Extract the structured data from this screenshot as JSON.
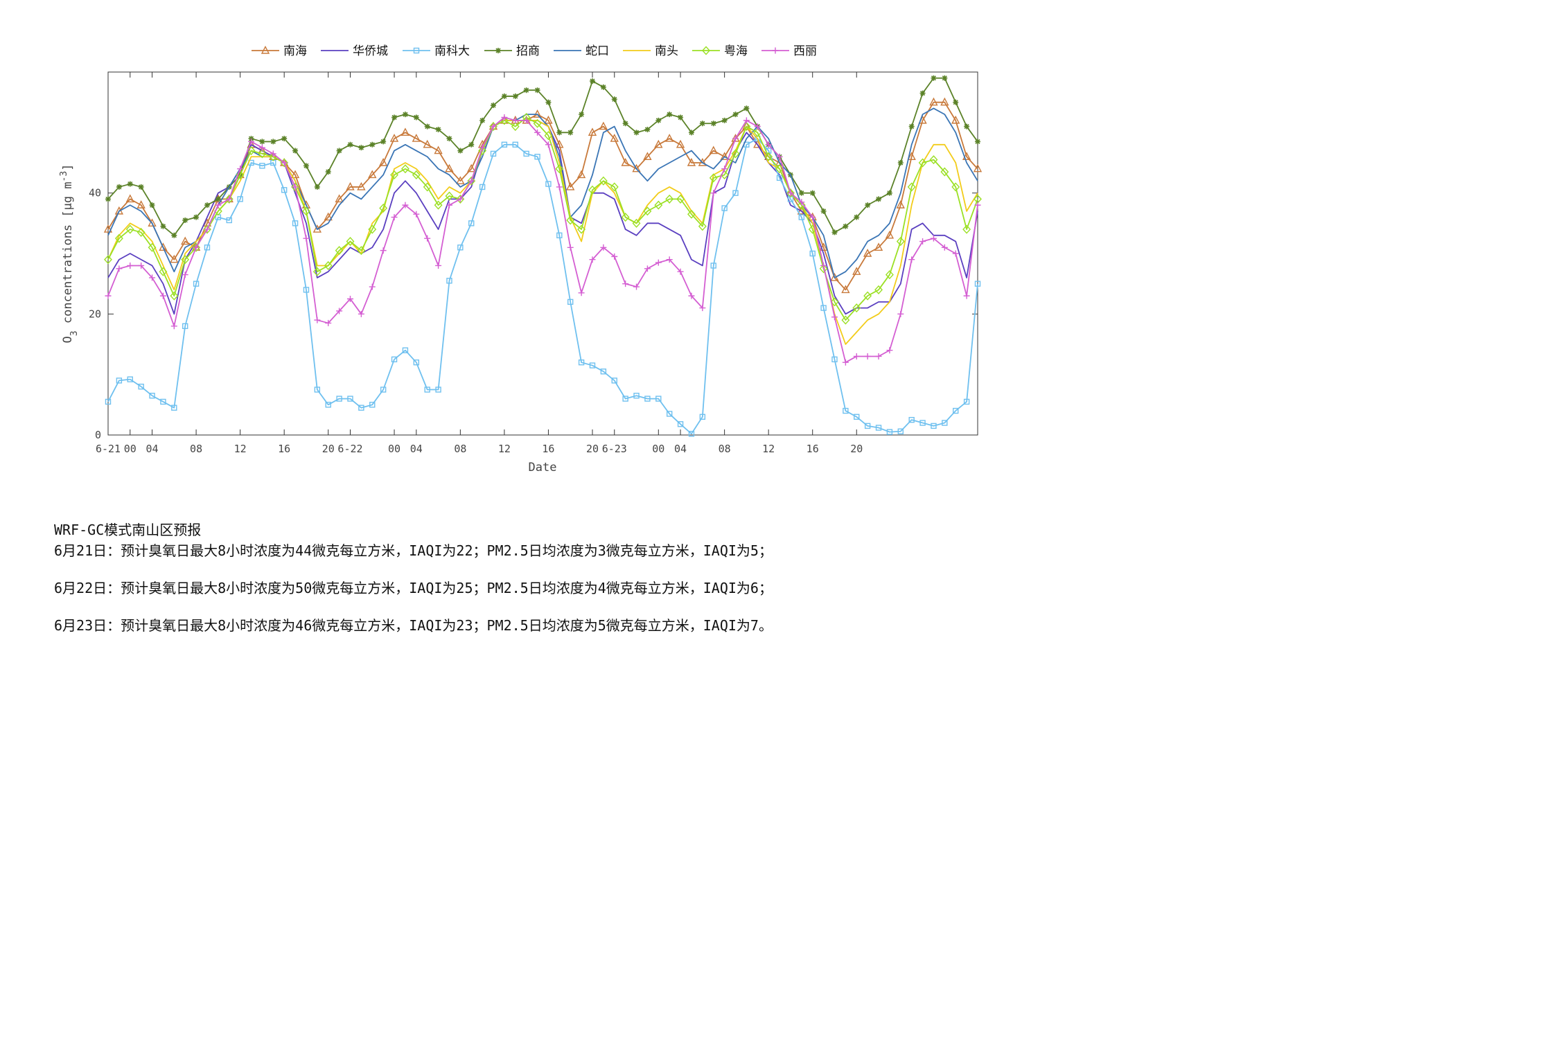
{
  "chart_data": {
    "type": "line",
    "xlabel": "Date",
    "ylabel": "O3 concentrations [μg m-3]",
    "ylim": [
      0,
      60
    ],
    "yticks": [
      0,
      20,
      40
    ],
    "x": [
      0,
      1,
      2,
      3,
      4,
      5,
      6,
      7,
      8,
      9,
      10,
      11,
      12,
      13,
      14,
      15,
      16,
      17,
      18,
      19,
      20,
      21,
      22,
      23,
      24,
      25,
      26,
      27,
      28,
      29,
      30,
      31,
      32,
      33,
      34,
      35,
      36,
      37,
      38,
      39,
      40,
      41,
      42,
      43,
      44,
      45,
      46,
      47,
      48,
      49,
      50,
      51,
      52,
      53,
      54,
      55,
      56,
      57,
      58,
      59,
      60,
      61,
      62,
      63,
      64,
      65,
      66,
      67,
      68,
      69,
      70,
      71,
      72,
      73,
      74,
      75,
      76,
      77,
      78,
      79
    ],
    "xticks": [
      {
        "x": 0,
        "label": "6-21"
      },
      {
        "x": 2,
        "label": "00"
      },
      {
        "x": 4,
        "label": "04"
      },
      {
        "x": 8,
        "label": "08"
      },
      {
        "x": 12,
        "label": "12"
      },
      {
        "x": 16,
        "label": "16"
      },
      {
        "x": 20,
        "label": "20"
      },
      {
        "x": 22,
        "label": "6-22"
      },
      {
        "x": 26,
        "label": "00"
      },
      {
        "x": 28,
        "label": "04"
      },
      {
        "x": 32,
        "label": "08"
      },
      {
        "x": 36,
        "label": "12"
      },
      {
        "x": 40,
        "label": "16"
      },
      {
        "x": 44,
        "label": "20"
      },
      {
        "x": 46,
        "label": "6-23"
      },
      {
        "x": 50,
        "label": "00"
      },
      {
        "x": 52,
        "label": "04"
      },
      {
        "x": 56,
        "label": "08"
      },
      {
        "x": 60,
        "label": "12"
      },
      {
        "x": 64,
        "label": "16"
      },
      {
        "x": 68,
        "label": "20"
      }
    ],
    "legend_position": "top",
    "series": [
      {
        "name": "南海",
        "color": "#c8793a",
        "marker": "triangle",
        "values": [
          34,
          37,
          39,
          38,
          35,
          31,
          29,
          32,
          31,
          35,
          39,
          39,
          43,
          48,
          47,
          46,
          45,
          43,
          38,
          34,
          36,
          39,
          41,
          41,
          43,
          45,
          49,
          50,
          49,
          48,
          47,
          44,
          42,
          44,
          48,
          51,
          52,
          52,
          52,
          53,
          52,
          48,
          41,
          43,
          50,
          51,
          49,
          45,
          44,
          46,
          48,
          49,
          48,
          45,
          45,
          47,
          46,
          49,
          51,
          48,
          46,
          45,
          40,
          37,
          36,
          31,
          26,
          24,
          27,
          30,
          31,
          33,
          38,
          46,
          52,
          55,
          55,
          52,
          46,
          44
        ]
      },
      {
        "name": "华侨城",
        "color": "#5a3fc0",
        "marker": "none",
        "values": [
          26,
          29,
          30,
          29,
          28,
          25,
          20,
          29,
          32,
          36,
          40,
          41,
          44,
          48,
          47,
          46,
          45,
          40,
          35,
          26,
          27,
          29,
          31,
          30,
          31,
          34,
          40,
          42,
          40,
          37,
          34,
          39,
          39,
          41,
          47,
          51,
          52,
          52,
          52,
          52,
          51,
          47,
          36,
          35,
          40,
          40,
          39,
          34,
          33,
          35,
          35,
          34,
          33,
          29,
          28,
          40,
          41,
          47,
          50,
          48,
          45,
          43,
          38,
          37,
          35,
          30,
          23,
          20,
          21,
          21,
          22,
          22,
          25,
          34,
          35,
          33,
          33,
          32,
          26,
          37
        ]
      },
      {
        "name": "南科大",
        "color": "#6fc0ef",
        "marker": "square",
        "values": [
          5.5,
          9,
          9.2,
          8,
          6.5,
          5.5,
          4.5,
          18,
          25,
          31,
          36,
          35.5,
          39,
          45,
          44.5,
          45,
          40.5,
          35,
          24,
          7.5,
          5,
          6,
          6,
          4.5,
          5,
          7.5,
          12.5,
          14,
          12,
          7.5,
          7.5,
          25.5,
          31,
          35,
          41,
          46.5,
          48,
          48,
          46.5,
          46,
          41.5,
          33,
          22,
          12,
          11.5,
          10.5,
          9,
          6,
          6.5,
          6,
          6,
          3.5,
          1.8,
          0.2,
          3,
          28,
          37.5,
          40,
          48,
          49,
          47,
          42.5,
          39,
          36,
          30,
          21,
          12.5,
          4,
          3,
          1.5,
          1.2,
          0.5,
          0.6,
          2.5,
          2,
          1.5,
          2,
          4,
          5.5,
          25
        ]
      },
      {
        "name": "招商",
        "color": "#5b8228",
        "marker": "star",
        "values": [
          39,
          41,
          41.5,
          41,
          38,
          34.5,
          33,
          35.5,
          36,
          38,
          39,
          41,
          43,
          49,
          48.5,
          48.5,
          49,
          47,
          44.5,
          41,
          43.5,
          47,
          48,
          47.5,
          48,
          48.5,
          52.5,
          53,
          52.5,
          51,
          50.5,
          49,
          47,
          48,
          52,
          54.5,
          56,
          56,
          57,
          57,
          55,
          50,
          50,
          53,
          58.5,
          57.5,
          55.5,
          51.5,
          50,
          50.5,
          52,
          53,
          52.5,
          50,
          51.5,
          51.5,
          52,
          53,
          54,
          51,
          48,
          46,
          43,
          40,
          40,
          37,
          33.5,
          34.5,
          36,
          38,
          39,
          40,
          45,
          51,
          56.5,
          59,
          59,
          55,
          51,
          48.5
        ]
      },
      {
        "name": "蛇口",
        "color": "#3a75b5",
        "marker": "none",
        "values": [
          33,
          37,
          38,
          37,
          35,
          31,
          27,
          31,
          32,
          34,
          38,
          41,
          44,
          47,
          46,
          46,
          45,
          42,
          38,
          34,
          35,
          38,
          40,
          39,
          41,
          43,
          47,
          48,
          47,
          46,
          44,
          43,
          41,
          42,
          46,
          51,
          52,
          52,
          53,
          53,
          51,
          46,
          36,
          38,
          43,
          50,
          51,
          47,
          44,
          42,
          44,
          45,
          46,
          47,
          45,
          44,
          46,
          45,
          49,
          51,
          49,
          45,
          43,
          38,
          36,
          33,
          26,
          27,
          29,
          32,
          33,
          35,
          40,
          48,
          53,
          54,
          53,
          50,
          45,
          42
        ]
      },
      {
        "name": "南头",
        "color": "#f2cc1a",
        "marker": "none",
        "values": [
          29,
          33,
          35,
          34,
          32,
          28,
          24,
          30,
          32,
          34,
          37,
          39,
          42,
          46,
          46,
          46,
          45,
          42,
          37,
          28,
          28,
          30,
          32,
          30,
          35,
          37,
          44,
          45,
          44,
          42,
          39,
          41,
          40,
          42,
          47,
          51,
          52,
          52,
          52,
          52,
          51,
          45,
          36,
          32,
          40,
          42,
          40,
          36,
          35,
          38,
          40,
          41,
          40,
          37,
          35,
          43,
          44,
          47,
          51,
          49,
          45,
          44,
          40,
          38,
          35,
          28,
          20,
          15,
          17,
          19,
          20,
          22,
          28,
          38,
          45,
          48,
          48,
          45,
          37,
          40
        ]
      },
      {
        "name": "粤海",
        "color": "#9be024",
        "marker": "diamond",
        "values": [
          29,
          32.5,
          34,
          33.5,
          31,
          27,
          23,
          29,
          31,
          34,
          37,
          39,
          43,
          47,
          46.5,
          46,
          45,
          41,
          37,
          27,
          28,
          30.5,
          32,
          30.5,
          34,
          37.5,
          43,
          44,
          43,
          41,
          38,
          39.5,
          39,
          42,
          47,
          51,
          52,
          51,
          52.5,
          51.5,
          49.5,
          44,
          35.5,
          34,
          40.5,
          42,
          41,
          36,
          35,
          37,
          38,
          39,
          39,
          36.5,
          34.5,
          42.5,
          43,
          46.5,
          51,
          50,
          46,
          44,
          40,
          38,
          34,
          27.5,
          22,
          19,
          21,
          23,
          24,
          26.5,
          32,
          41,
          45,
          45.5,
          43.5,
          41,
          34,
          39
        ]
      },
      {
        "name": "西丽",
        "color": "#d45ed2",
        "marker": "plus",
        "values": [
          23,
          27.5,
          28,
          28,
          26,
          23,
          18,
          26.5,
          31,
          34,
          38,
          39,
          44,
          48.5,
          47.5,
          46.5,
          45,
          41,
          32.5,
          19,
          18.5,
          20.5,
          22.5,
          20,
          24.5,
          30.5,
          36,
          38,
          36.5,
          32.5,
          28,
          38,
          39,
          42,
          47.5,
          51,
          52.5,
          52,
          52,
          50,
          48,
          41,
          31,
          23.5,
          29,
          31,
          29.5,
          25,
          24.5,
          27.5,
          28.5,
          29,
          27,
          23,
          21,
          40,
          44,
          49,
          52,
          51,
          48,
          46,
          40,
          38.5,
          36,
          28,
          19.5,
          12,
          13,
          13,
          13,
          14,
          20,
          29,
          32,
          32.5,
          31,
          30,
          23,
          38
        ]
      }
    ]
  },
  "forecast": {
    "title": "WRF-GC模式南山区预报",
    "lines": [
      "6月21日：预计臭氧日最大8小时浓度为44微克每立方米，IAQI为22；PM2.5日均浓度为3微克每立方米，IAQI为5；",
      "6月22日：预计臭氧日最大8小时浓度为50微克每立方米，IAQI为25；PM2.5日均浓度为4微克每立方米，IAQI为6；",
      "6月23日：预计臭氧日最大8小时浓度为46微克每立方米，IAQI为23；PM2.5日均浓度为5微克每立方米，IAQI为7。"
    ]
  }
}
